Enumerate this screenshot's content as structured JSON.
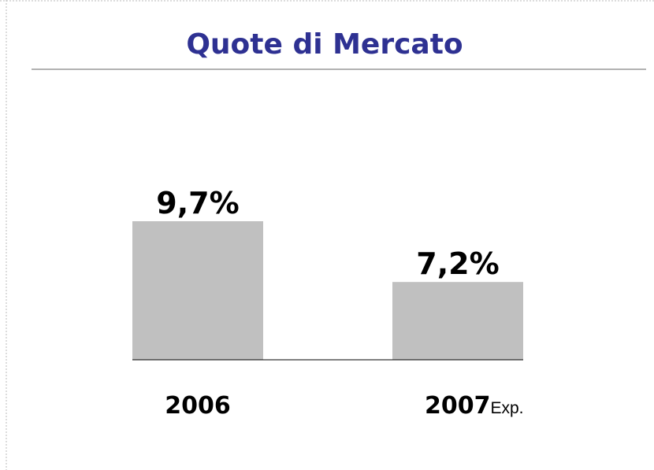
{
  "chart_data": {
    "type": "bar",
    "title": "Quote di Mercato",
    "categories": [
      "2006",
      "2007"
    ],
    "category_suffixes": [
      null,
      "Exp."
    ],
    "values": [
      9.7,
      7.2
    ],
    "value_labels": [
      "9,7%",
      "7,2%"
    ],
    "color": "#c0c0c0",
    "ylim": [
      4,
      12
    ]
  }
}
